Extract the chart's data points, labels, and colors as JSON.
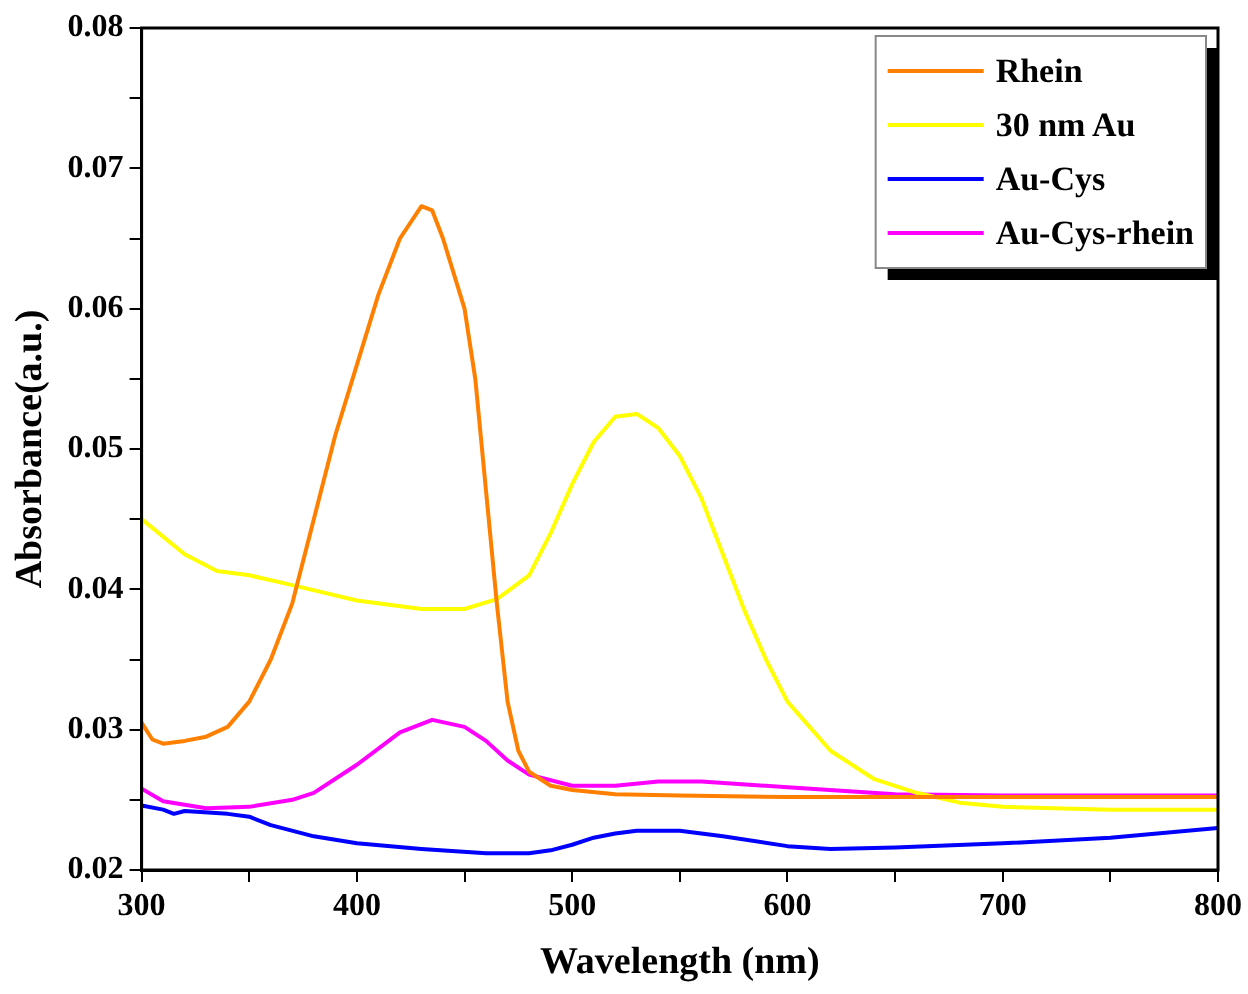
{
  "chart_data": {
    "type": "line",
    "xlabel": "Wavelength (nm)",
    "ylabel": "Absorbance(a.u.)",
    "xlim": [
      300,
      800
    ],
    "ylim": [
      0.02,
      0.08
    ],
    "xticks": [
      300,
      {
        "value": 350,
        "label": null
      },
      400,
      {
        "value": 450,
        "label": null
      },
      500,
      {
        "value": 550,
        "label": null
      },
      600,
      {
        "value": 650,
        "label": null
      },
      700,
      {
        "value": 750,
        "label": null
      },
      800
    ],
    "yticks": [
      0.02,
      {
        "value": 0.025,
        "label": null
      },
      0.03,
      {
        "value": 0.035,
        "label": null
      },
      0.04,
      {
        "value": 0.045,
        "label": null
      },
      0.05,
      {
        "value": 0.055,
        "label": null
      },
      0.06,
      {
        "value": 0.065,
        "label": null
      },
      0.07,
      {
        "value": 0.075,
        "label": null
      },
      0.08
    ],
    "grid": false,
    "legend": "top right",
    "marker": "none",
    "line_style": "solid",
    "series": [
      {
        "name": "Rhein",
        "color": "#ff8000",
        "x": [
          300,
          305,
          310,
          320,
          330,
          340,
          350,
          360,
          370,
          380,
          390,
          400,
          410,
          420,
          430,
          435,
          440,
          450,
          455,
          460,
          465,
          470,
          475,
          480,
          490,
          500,
          520,
          550,
          600,
          650,
          700,
          750,
          800
        ],
        "values": [
          0.0305,
          0.0293,
          0.029,
          0.0292,
          0.0295,
          0.0302,
          0.032,
          0.035,
          0.039,
          0.045,
          0.051,
          0.056,
          0.061,
          0.065,
          0.0673,
          0.067,
          0.065,
          0.06,
          0.055,
          0.047,
          0.039,
          0.032,
          0.0285,
          0.027,
          0.026,
          0.0257,
          0.0254,
          0.0253,
          0.0252,
          0.0252,
          0.0252,
          0.0252,
          0.0252
        ]
      },
      {
        "name": "30 nm Au",
        "color": "#ffff00",
        "x": [
          300,
          320,
          335,
          350,
          370,
          400,
          430,
          450,
          465,
          480,
          490,
          500,
          510,
          520,
          530,
          540,
          550,
          560,
          570,
          580,
          590,
          600,
          620,
          640,
          660,
          680,
          700,
          750,
          800
        ],
        "values": [
          0.045,
          0.0425,
          0.0413,
          0.041,
          0.0403,
          0.0392,
          0.0386,
          0.0386,
          0.0393,
          0.041,
          0.044,
          0.0475,
          0.0505,
          0.0523,
          0.0525,
          0.0515,
          0.0495,
          0.0465,
          0.0425,
          0.0385,
          0.035,
          0.032,
          0.0285,
          0.0265,
          0.0255,
          0.0248,
          0.0245,
          0.0243,
          0.0243
        ]
      },
      {
        "name": "Au-Cys",
        "color": "#0000ff",
        "x": [
          300,
          310,
          315,
          320,
          340,
          350,
          360,
          380,
          400,
          430,
          460,
          480,
          490,
          500,
          510,
          520,
          530,
          550,
          570,
          600,
          620,
          650,
          700,
          750,
          800
        ],
        "values": [
          0.0246,
          0.0243,
          0.024,
          0.0242,
          0.024,
          0.0238,
          0.0232,
          0.0224,
          0.0219,
          0.0215,
          0.0212,
          0.0212,
          0.0214,
          0.0218,
          0.0223,
          0.0226,
          0.0228,
          0.0228,
          0.0224,
          0.0217,
          0.0215,
          0.0216,
          0.0219,
          0.0223,
          0.023
        ]
      },
      {
        "name": "Au-Cys-rhein",
        "color": "#ff00ff",
        "x": [
          300,
          310,
          330,
          350,
          370,
          380,
          400,
          420,
          435,
          450,
          460,
          470,
          480,
          500,
          520,
          540,
          560,
          600,
          650,
          700,
          800
        ],
        "values": [
          0.0258,
          0.0249,
          0.0244,
          0.0245,
          0.025,
          0.0255,
          0.0275,
          0.0298,
          0.0307,
          0.0302,
          0.0292,
          0.0278,
          0.0268,
          0.026,
          0.026,
          0.0263,
          0.0263,
          0.0259,
          0.0254,
          0.0253,
          0.0253
        ]
      }
    ]
  }
}
